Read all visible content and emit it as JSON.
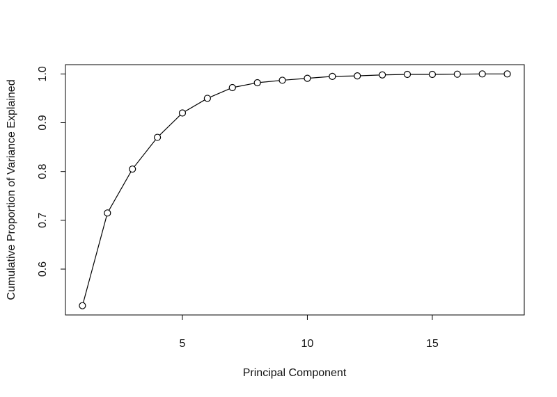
{
  "chart_data": {
    "type": "line",
    "xlabel": "Principal Component",
    "ylabel": "Cumulative Proportion of Variance Explained",
    "x": [
      1,
      2,
      3,
      4,
      5,
      6,
      7,
      8,
      9,
      10,
      11,
      12,
      13,
      14,
      15,
      16,
      17,
      18
    ],
    "values": [
      0.525,
      0.715,
      0.805,
      0.87,
      0.92,
      0.95,
      0.972,
      0.982,
      0.987,
      0.991,
      0.995,
      0.996,
      0.998,
      0.999,
      0.999,
      0.9995,
      1.0,
      1.0
    ],
    "color": "#000000",
    "xlim": [
      0.32,
      18.68
    ],
    "ylim": [
      0.506,
      1.019
    ],
    "xticks": [
      5,
      10,
      15
    ],
    "yticks": [
      0.6,
      0.7,
      0.8,
      0.9,
      {
        "value": 1,
        "label": "1.0"
      }
    ]
  }
}
